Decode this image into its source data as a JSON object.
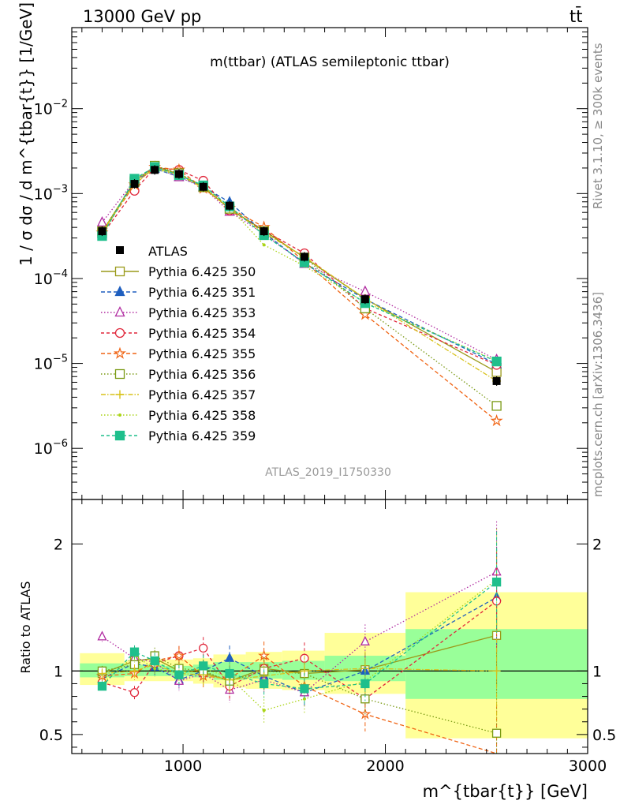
{
  "header": {
    "left": "13000 GeV pp",
    "right": "tt̄"
  },
  "side_labels": {
    "rivet": "Rivet 3.1.10, ≥ 300k events",
    "mcplots": "mcplots.cern.ch [arXiv:1306.3436]"
  },
  "plot": {
    "title": "m(ttbar) (ATLAS semileptonic ttbar)",
    "watermark": "ATLAS_2019_I1750330",
    "ylabel_main": "1 / σ dσ / d m^{tbar{t}} [1/GeV]",
    "ylabel_ratio": "Ratio to ATLAS",
    "xlabel": "m^{tbar{t}} [GeV]"
  },
  "chart_data": {
    "type": "line",
    "x_scale": "linear",
    "y_scale": "log",
    "xlim": [
      450,
      3000
    ],
    "ylim": [
      2.5e-07,
      0.09
    ],
    "ratio_ylim": [
      0.35,
      2.35
    ],
    "x_ticks": [
      1000,
      2000,
      3000
    ],
    "x_tick_labels": [
      "1000",
      "2000",
      "3000"
    ],
    "y_tick_labels": [
      "10^{-6}",
      "10^{-5}",
      "10^{-4}",
      "10^{-3}",
      "10^{-2}"
    ],
    "ratio_tick_labels": [
      "0.5",
      "1",
      "2"
    ],
    "x": [
      600,
      760,
      860,
      980,
      1100,
      1230,
      1400,
      1600,
      1900,
      2550
    ],
    "bin_edges": [
      490,
      710,
      810,
      910,
      1050,
      1150,
      1310,
      1490,
      1700,
      2100,
      3000
    ],
    "reference": {
      "name": "ATLAS",
      "values": [
        0.00036,
        0.0013,
        0.0019,
        0.0017,
        0.0012,
        0.00072,
        0.00036,
        0.00018,
        5.7e-05,
        6.2e-06
      ],
      "band_inner": [
        [
          0.95,
          1.06
        ],
        [
          0.96,
          1.05
        ],
        [
          0.96,
          1.05
        ],
        [
          0.96,
          1.04
        ],
        [
          0.95,
          1.05
        ],
        [
          0.93,
          1.07
        ],
        [
          0.94,
          1.07
        ],
        [
          0.93,
          1.08
        ],
        [
          0.92,
          1.12
        ],
        [
          0.78,
          1.33
        ]
      ],
      "band_outer": [
        [
          0.89,
          1.14
        ],
        [
          0.92,
          1.08
        ],
        [
          0.92,
          1.09
        ],
        [
          0.92,
          1.09
        ],
        [
          0.9,
          1.1
        ],
        [
          0.87,
          1.13
        ],
        [
          0.86,
          1.15
        ],
        [
          0.85,
          1.16
        ],
        [
          0.82,
          1.3
        ],
        [
          0.47,
          1.62
        ]
      ]
    },
    "series": [
      {
        "name": "Pythia 6.425 350",
        "color": "#9a9a1a",
        "marker": "square-open",
        "dash": "solid",
        "ratio": [
          0.98,
          1.08,
          1.1,
          1.0,
          0.99,
          0.92,
          1.02,
          0.98,
          1.01,
          1.28
        ]
      },
      {
        "name": "Pythia 6.425 351",
        "color": "#1f5fbf",
        "marker": "triangle",
        "dash": "5,3",
        "ratio": [
          0.94,
          1.06,
          1.03,
          0.93,
          1.0,
          1.1,
          0.96,
          0.83,
          1.0,
          1.58
        ]
      },
      {
        "name": "Pythia 6.425 353",
        "color": "#b02aa0",
        "marker": "triangle-open",
        "dash": "1.5,2.5",
        "ratio": [
          1.27,
          1.1,
          1.07,
          0.92,
          0.98,
          0.85,
          0.93,
          0.83,
          1.23,
          1.78
        ]
      },
      {
        "name": "Pythia 6.425 354",
        "color": "#e0263a",
        "marker": "circle-open",
        "dash": "4,3",
        "ratio": [
          0.91,
          0.83,
          1.06,
          1.12,
          1.18,
          0.88,
          1.02,
          1.1,
          0.78,
          1.55
        ]
      },
      {
        "name": "Pythia 6.425 355",
        "color": "#f06414",
        "marker": "star",
        "dash": "5,3",
        "ratio": [
          0.96,
          0.98,
          1.08,
          1.12,
          0.96,
          0.94,
          1.12,
          0.88,
          0.66,
          0.34
        ]
      },
      {
        "name": "Pythia 6.425 356",
        "color": "#7a9a14",
        "marker": "square-open",
        "dash": "1.5,2.5",
        "ratio": [
          1.0,
          1.05,
          1.12,
          1.02,
          1.0,
          0.92,
          1.0,
          0.98,
          0.78,
          0.51
        ]
      },
      {
        "name": "Pythia 6.425 357",
        "color": "#d8c21a",
        "marker": "cross",
        "dash": "6,2,1.5,2",
        "ratio": [
          0.98,
          1.0,
          1.05,
          0.98,
          0.97,
          0.93,
          0.96,
          1.0,
          1.02,
          1.0
        ]
      },
      {
        "name": "Pythia 6.425 358",
        "color": "#aad416",
        "marker": "dot",
        "dash": "1.5,2.5",
        "ratio": [
          0.9,
          1.12,
          1.02,
          0.98,
          1.02,
          0.95,
          0.69,
          0.78,
          0.92,
          1.72
        ]
      },
      {
        "name": "Pythia 6.425 359",
        "color": "#1fbf8c",
        "marker": "square",
        "dash": "4,3",
        "ratio": [
          0.88,
          1.15,
          1.08,
          0.97,
          1.04,
          0.98,
          0.9,
          0.86,
          0.9,
          1.7
        ]
      }
    ],
    "legend_position": "left-middle"
  }
}
